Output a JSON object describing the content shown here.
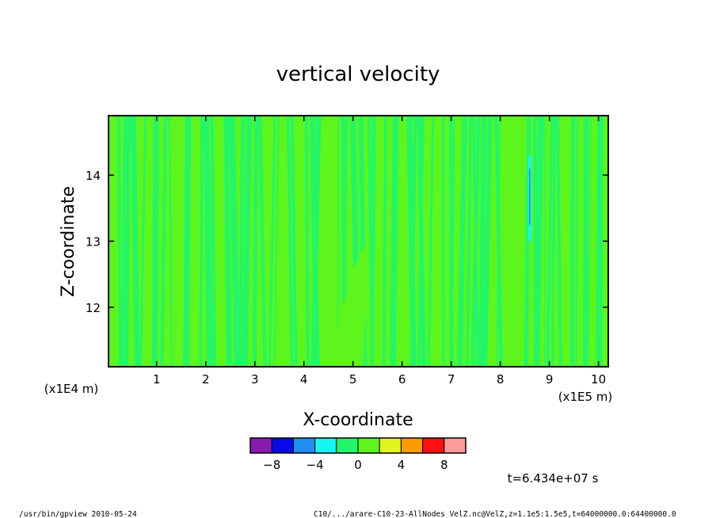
{
  "chart_data": {
    "type": "heatmap",
    "title": "vertical velocity",
    "xlabel": "X-coordinate",
    "ylabel": "Z-coordinate",
    "x_unit": "(x1E5 m)",
    "y_unit": "(x1E4 m)",
    "xlim": [
      0.02,
      10.2
    ],
    "ylim": [
      111000,
      149000
    ],
    "x_ticks": [
      1,
      2,
      3,
      4,
      5,
      6,
      7,
      8,
      9,
      10
    ],
    "y_ticks": [
      12,
      13,
      14
    ],
    "y_tick_values": [
      120000,
      130000,
      140000
    ],
    "colorbar": {
      "levels": [
        -10,
        -8,
        -6,
        -4,
        -2,
        0,
        2,
        4,
        6,
        8,
        10
      ],
      "labels": [
        "-8",
        "-4",
        "0",
        "4",
        "8"
      ],
      "label_values": [
        -8,
        -4,
        0,
        4,
        8
      ],
      "colors": [
        "#8a1bb0",
        "#0a0ae8",
        "#1e8ef5",
        "#17f4f4",
        "#22f56a",
        "#5df51c",
        "#e0f51c",
        "#ff9a00",
        "#ff1010",
        "#ff9a9a"
      ]
    },
    "field": {
      "dominant_bands": [
        {
          "range": [
            -2,
            0
          ],
          "color": "#22f56a"
        },
        {
          "range": [
            0,
            2
          ],
          "color": "#5df51c"
        }
      ],
      "anomaly": {
        "x": 8.6,
        "z_range": [
          130000,
          143000
        ],
        "min_value": -6
      }
    }
  },
  "time_label": "t=6.434e+07 s",
  "footer": {
    "program": "/usr/bin/gpview   2010-05-24",
    "source": "C10/.../arare-C10-23-AllNodes_VelZ.nc@VelZ,z=1.1e5:1.5e5,t=64000000.0:64400000.0"
  }
}
